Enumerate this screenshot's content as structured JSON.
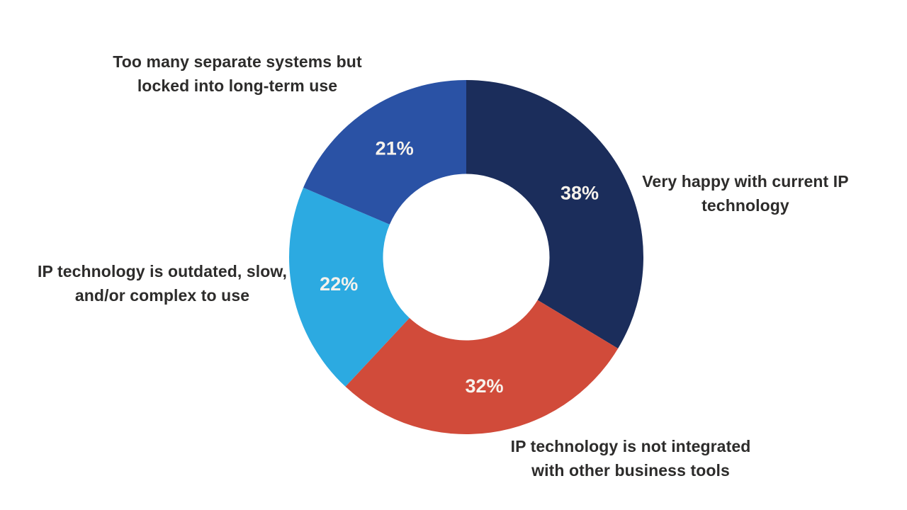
{
  "chart_data": {
    "type": "pie",
    "subtype": "donut",
    "title": "",
    "legend": "none",
    "direction": "clockwise",
    "start_angle_deg": 0,
    "donut_hole_ratio": 0.47,
    "background_color": "#ffffff",
    "value_label_color": "#f7f2ec",
    "callout_label_color": "#2d2c2b",
    "categories": [
      "Very happy with current IP technology",
      "IP technology is not integrated with other business tools",
      "IP technology is outdated, slow, and/or complex to use",
      "Too many separate systems but locked into long-term use"
    ],
    "values": [
      38,
      32,
      22,
      21
    ],
    "slices": [
      {
        "label": "Very happy with current IP technology",
        "label_lines": [
          "Very happy with current IP",
          "technology"
        ],
        "value": 38,
        "display_value": "38%",
        "color": "#1b2d5b"
      },
      {
        "label": "IP technology is not integrated with other business tools",
        "label_lines": [
          "IP technology is not integrated",
          "with other business tools"
        ],
        "value": 32,
        "display_value": "32%",
        "color": "#d14b3a"
      },
      {
        "label": "IP technology is outdated, slow, and/or complex to use",
        "label_lines": [
          "IP technology is outdated, slow,",
          "and/or complex to use"
        ],
        "value": 22,
        "display_value": "22%",
        "color": "#2caae1"
      },
      {
        "label": "Too many separate systems but locked into long-term use",
        "label_lines": [
          "Too many separate systems but",
          "locked into long-term use"
        ],
        "value": 21,
        "display_value": "21%",
        "color": "#2a52a5"
      }
    ]
  }
}
